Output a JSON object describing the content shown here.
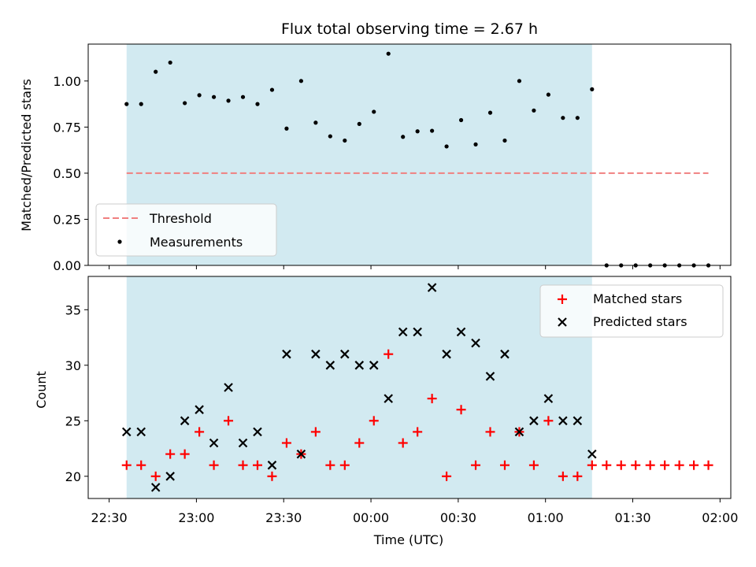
{
  "chart_data": [
    {
      "type": "scatter",
      "title": "Flux total observing time = 2.67 h",
      "xlabel": "",
      "ylabel": "Matched/Predicted stars",
      "ylim": [
        0,
        1.2
      ],
      "yticks": [
        "0.00",
        "0.25",
        "0.50",
        "0.75",
        "1.00"
      ],
      "xticks": [
        "22:30",
        "23:00",
        "23:30",
        "00:00",
        "00:30",
        "01:00",
        "01:30",
        "02:00"
      ],
      "shaded_span": [
        "22:36",
        "01:16"
      ],
      "threshold": {
        "name": "Threshold",
        "value": 0.5,
        "x_start": "22:36",
        "x_end": "01:56"
      },
      "legend": {
        "position": "lower-left",
        "entries": [
          "Threshold",
          "Measurements"
        ]
      },
      "series": [
        {
          "name": "Measurements",
          "x": [
            "22:36",
            "22:41",
            "22:46",
            "22:51",
            "22:56",
            "23:01",
            "23:06",
            "23:11",
            "23:16",
            "23:21",
            "23:26",
            "23:31",
            "23:36",
            "23:41",
            "23:46",
            "23:51",
            "23:56",
            "00:01",
            "00:06",
            "00:11",
            "00:16",
            "00:21",
            "00:26",
            "00:31",
            "00:36",
            "00:41",
            "00:46",
            "00:51",
            "00:56",
            "01:01",
            "01:06",
            "01:11",
            "01:16",
            "01:21",
            "01:26",
            "01:31",
            "01:36",
            "01:41",
            "01:46",
            "01:51",
            "01:56"
          ],
          "values": [
            0.875,
            0.875,
            1.05,
            1.1,
            0.88,
            0.923,
            0.913,
            0.893,
            0.913,
            0.875,
            0.952,
            0.742,
            1.0,
            0.774,
            0.7,
            0.677,
            0.767,
            0.833,
            1.148,
            0.697,
            0.727,
            0.73,
            0.645,
            0.788,
            0.656,
            0.828,
            0.677,
            1.0,
            0.84,
            0.926,
            0.8,
            0.8,
            0.955,
            0,
            0,
            0,
            0,
            0,
            0,
            0,
            0
          ]
        }
      ]
    },
    {
      "type": "scatter",
      "title": "",
      "xlabel": "Time (UTC)",
      "ylabel": "Count",
      "ylim": [
        18,
        38
      ],
      "yticks": [
        "20",
        "25",
        "30",
        "35"
      ],
      "xticks": [
        "22:30",
        "23:00",
        "23:30",
        "00:00",
        "00:30",
        "01:00",
        "01:30",
        "02:00"
      ],
      "shaded_span": [
        "22:36",
        "01:16"
      ],
      "legend": {
        "position": "upper-right",
        "entries": [
          "Matched stars",
          "Predicted stars"
        ]
      },
      "series": [
        {
          "name": "Matched stars",
          "color": "#ff0000",
          "x": [
            "22:36",
            "22:41",
            "22:46",
            "22:51",
            "22:56",
            "23:01",
            "23:06",
            "23:11",
            "23:16",
            "23:21",
            "23:26",
            "23:31",
            "23:36",
            "23:41",
            "23:46",
            "23:51",
            "23:56",
            "00:01",
            "00:06",
            "00:11",
            "00:16",
            "00:21",
            "00:26",
            "00:31",
            "00:36",
            "00:41",
            "00:46",
            "00:51",
            "00:56",
            "01:01",
            "01:06",
            "01:11",
            "01:16",
            "01:21",
            "01:26",
            "01:31",
            "01:36",
            "01:41",
            "01:46",
            "01:51",
            "01:56"
          ],
          "values": [
            21,
            21,
            20,
            22,
            22,
            24,
            21,
            25,
            21,
            21,
            20,
            23,
            22,
            24,
            21,
            21,
            23,
            25,
            31,
            23,
            24,
            27,
            20,
            26,
            21,
            24,
            21,
            24,
            21,
            25,
            20,
            20,
            21,
            21,
            21,
            21,
            21,
            21,
            21,
            21,
            21
          ]
        },
        {
          "name": "Predicted stars",
          "color": "#000000",
          "x": [
            "22:36",
            "22:41",
            "22:46",
            "22:51",
            "22:56",
            "23:01",
            "23:06",
            "23:11",
            "23:16",
            "23:21",
            "23:26",
            "23:31",
            "23:36",
            "23:41",
            "23:46",
            "23:51",
            "23:56",
            "00:01",
            "00:06",
            "00:11",
            "00:16",
            "00:21",
            "00:26",
            "00:31",
            "00:36",
            "00:41",
            "00:46",
            "00:51",
            "00:56",
            "01:01",
            "01:06",
            "01:11",
            "01:16"
          ],
          "values": [
            24,
            24,
            19,
            20,
            25,
            26,
            23,
            28,
            23,
            24,
            21,
            31,
            22,
            31,
            30,
            31,
            30,
            30,
            27,
            33,
            33,
            37,
            31,
            33,
            32,
            29,
            31,
            24,
            25,
            27,
            25,
            25,
            22
          ]
        }
      ]
    }
  ],
  "colors": {
    "shade": "#add8e6",
    "threshold": "#f08080",
    "measurements": "#000000",
    "matched": "#ff0000",
    "predicted": "#000000"
  }
}
